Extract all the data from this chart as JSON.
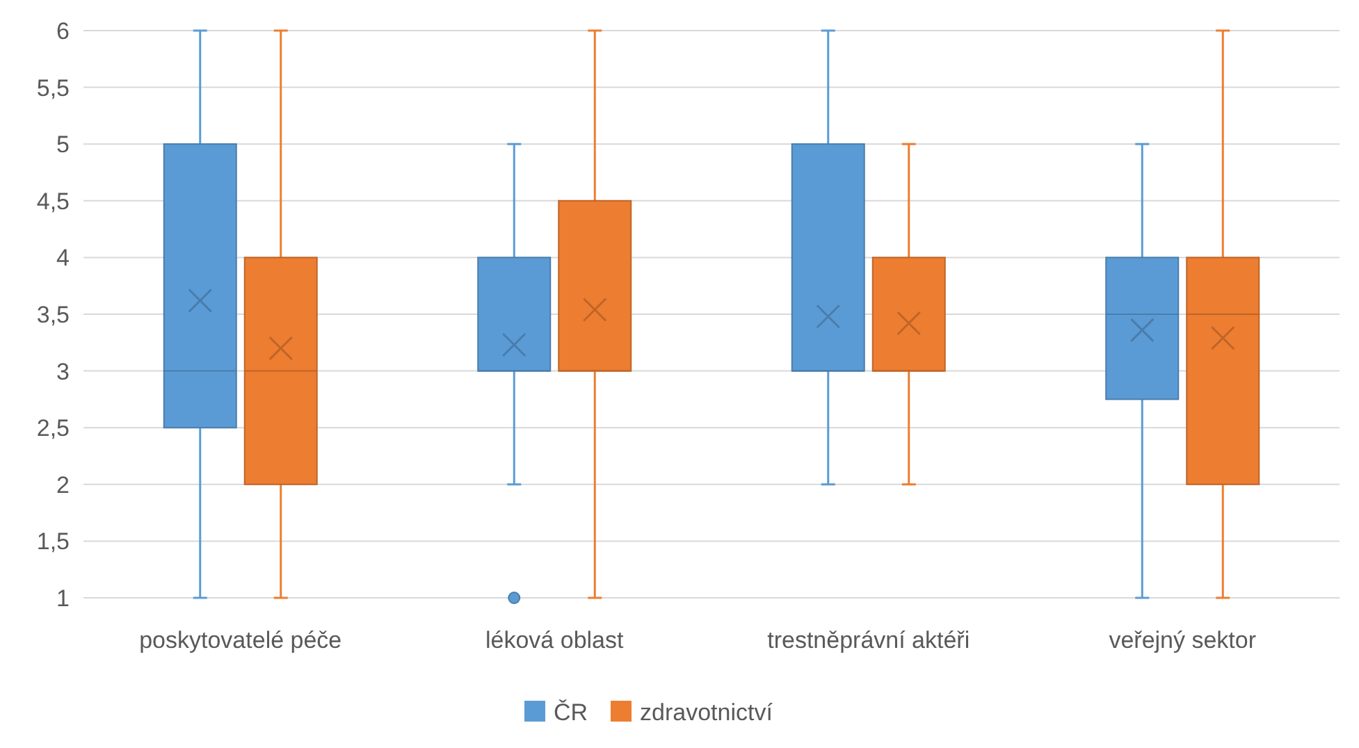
{
  "chart_data": {
    "type": "box",
    "categories": [
      "poskytovatelé péče",
      "léková oblast",
      "trestněprávní aktéři",
      "veřejný sektor"
    ],
    "ylim": [
      1,
      6
    ],
    "yticks": [
      1,
      {
        "value": 1.5,
        "label": "1,5"
      },
      2,
      {
        "value": 2.5,
        "label": "2,5"
      },
      3,
      {
        "value": 3.5,
        "label": "3,5"
      },
      4,
      {
        "value": 4.5,
        "label": "4,5"
      },
      5,
      {
        "value": 5.5,
        "label": "5,5"
      },
      6
    ],
    "grid": "y",
    "legend": "bottom",
    "series": [
      {
        "name": "ČR",
        "color": "#5b9bd5",
        "boxes": [
          {
            "low": 1,
            "q1": 2.5,
            "median": 3,
            "q3": 5,
            "high": 6,
            "mean": 3.62
          },
          {
            "low": 2,
            "q1": 3,
            "median": 3,
            "q3": 4,
            "high": 5,
            "mean": 3.23,
            "outliers": [
              1
            ]
          },
          {
            "low": 2,
            "q1": 3,
            "median": 3,
            "q3": 5,
            "high": 6,
            "mean": 3.48
          },
          {
            "low": 1,
            "q1": 2.75,
            "median": 3.5,
            "q3": 4,
            "high": 5,
            "mean": 3.36
          }
        ]
      },
      {
        "name": "zdravotnictví",
        "color": "#ed7d31",
        "boxes": [
          {
            "low": 1,
            "q1": 2,
            "median": 3,
            "q3": 4,
            "high": 6,
            "mean": 3.2
          },
          {
            "low": 1,
            "q1": 3,
            "median": 3,
            "q3": 4.5,
            "high": 6,
            "mean": 3.54
          },
          {
            "low": 2,
            "q1": 3,
            "median": 3,
            "q3": 4,
            "high": 5,
            "mean": 3.42
          },
          {
            "low": 1,
            "q1": 2,
            "median": 3.5,
            "q3": 4,
            "high": 6,
            "mean": 3.29
          }
        ]
      }
    ]
  }
}
